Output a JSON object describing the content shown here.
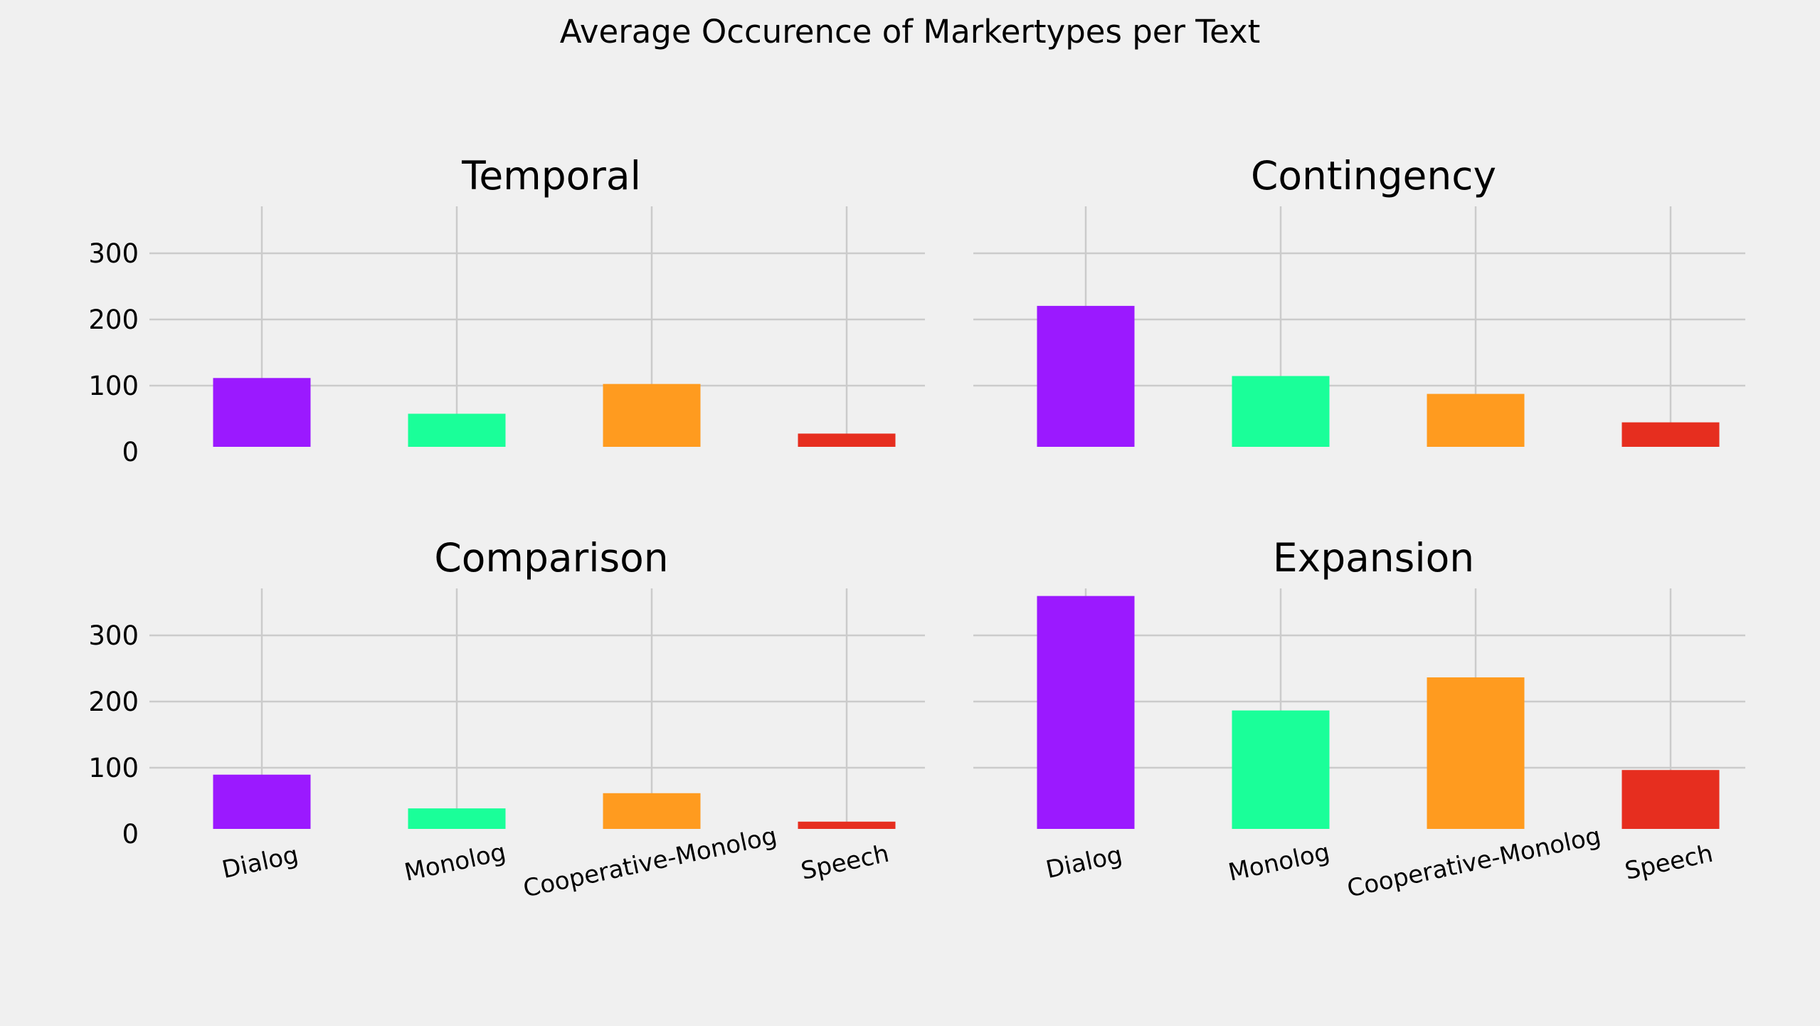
{
  "title": "Average Occurence of Markertypes per Text",
  "colors": {
    "background": "#f0f0f0",
    "grid": "#cbcbcb",
    "Dialog": "#9b19ff",
    "Monolog": "#1aff99",
    "Cooperative-Monolog": "#ff9b1f",
    "Speech": "#e62e1f"
  },
  "chart_data": [
    {
      "type": "bar",
      "title": "Temporal",
      "categories": [
        "Dialog",
        "Monolog",
        "Cooperative-Monolog",
        "Speech"
      ],
      "values": [
        104,
        50,
        95,
        20
      ],
      "ylim": [
        0,
        355
      ],
      "yticks": [
        0,
        100,
        200,
        300
      ],
      "grid": true
    },
    {
      "type": "bar",
      "title": "Contingency",
      "categories": [
        "Dialog",
        "Monolog",
        "Cooperative-Monolog",
        "Speech"
      ],
      "values": [
        213,
        107,
        80,
        37
      ],
      "ylim": [
        0,
        355
      ],
      "yticks": [
        0,
        100,
        200,
        300
      ],
      "grid": true
    },
    {
      "type": "bar",
      "title": "Comparison",
      "categories": [
        "Dialog",
        "Monolog",
        "Cooperative-Monolog",
        "Speech"
      ],
      "values": [
        82,
        31,
        54,
        11
      ],
      "ylim": [
        0,
        355
      ],
      "yticks": [
        0,
        100,
        200,
        300
      ],
      "grid": true
    },
    {
      "type": "bar",
      "title": "Expansion",
      "categories": [
        "Dialog",
        "Monolog",
        "Cooperative-Monolog",
        "Speech"
      ],
      "values": [
        352,
        179,
        229,
        89
      ],
      "ylim": [
        0,
        355
      ],
      "yticks": [
        0,
        100,
        200,
        300
      ],
      "grid": true
    }
  ]
}
